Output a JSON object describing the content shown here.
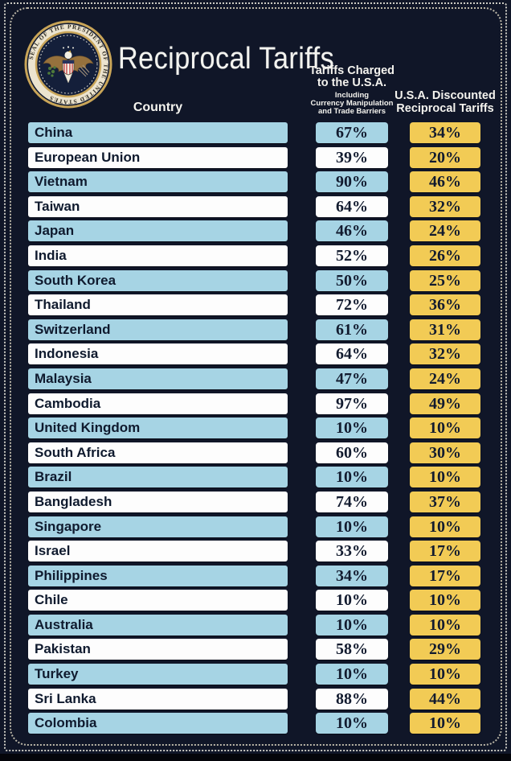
{
  "title": "Reciprocal Tariffs",
  "seal": {
    "ring_text": "SEAL OF THE PRESIDENT OF THE UNITED STATES"
  },
  "columns": {
    "country": "Country",
    "charged_line1": "Tariffs Charged",
    "charged_line2": "to the U.S.A.",
    "charged_sub1": "Including",
    "charged_sub2": "Currency Manipulation",
    "charged_sub3": "and Trade Barriers",
    "discounted_line1": "U.S.A. Discounted",
    "discounted_line2": "Reciprocal Tariffs"
  },
  "colors": {
    "background": "#101628",
    "row_blue": "#a6d4e4",
    "row_white": "#fdfdfd",
    "cell_gold": "#f2cb55",
    "text_navy": "#0f1a2e",
    "header_white": "#f4f3ee"
  },
  "chart_data": {
    "type": "table",
    "title": "Reciprocal Tariffs",
    "columns": [
      "Country",
      "Tariffs Charged to the U.S.A. Including Currency Manipulation and Trade Barriers",
      "U.S.A. Discounted Reciprocal Tariffs"
    ],
    "rows": [
      {
        "country": "China",
        "charged": "67%",
        "discounted": "34%"
      },
      {
        "country": "European Union",
        "charged": "39%",
        "discounted": "20%"
      },
      {
        "country": "Vietnam",
        "charged": "90%",
        "discounted": "46%"
      },
      {
        "country": "Taiwan",
        "charged": "64%",
        "discounted": "32%"
      },
      {
        "country": "Japan",
        "charged": "46%",
        "discounted": "24%"
      },
      {
        "country": "India",
        "charged": "52%",
        "discounted": "26%"
      },
      {
        "country": "South Korea",
        "charged": "50%",
        "discounted": "25%"
      },
      {
        "country": "Thailand",
        "charged": "72%",
        "discounted": "36%"
      },
      {
        "country": "Switzerland",
        "charged": "61%",
        "discounted": "31%"
      },
      {
        "country": "Indonesia",
        "charged": "64%",
        "discounted": "32%"
      },
      {
        "country": "Malaysia",
        "charged": "47%",
        "discounted": "24%"
      },
      {
        "country": "Cambodia",
        "charged": "97%",
        "discounted": "49%"
      },
      {
        "country": "United Kingdom",
        "charged": "10%",
        "discounted": "10%"
      },
      {
        "country": "South Africa",
        "charged": "60%",
        "discounted": "30%"
      },
      {
        "country": "Brazil",
        "charged": "10%",
        "discounted": "10%"
      },
      {
        "country": "Bangladesh",
        "charged": "74%",
        "discounted": "37%"
      },
      {
        "country": "Singapore",
        "charged": "10%",
        "discounted": "10%"
      },
      {
        "country": "Israel",
        "charged": "33%",
        "discounted": "17%"
      },
      {
        "country": "Philippines",
        "charged": "34%",
        "discounted": "17%"
      },
      {
        "country": "Chile",
        "charged": "10%",
        "discounted": "10%"
      },
      {
        "country": "Australia",
        "charged": "10%",
        "discounted": "10%"
      },
      {
        "country": "Pakistan",
        "charged": "58%",
        "discounted": "29%"
      },
      {
        "country": "Turkey",
        "charged": "10%",
        "discounted": "10%"
      },
      {
        "country": "Sri Lanka",
        "charged": "88%",
        "discounted": "44%"
      },
      {
        "country": "Colombia",
        "charged": "10%",
        "discounted": "10%"
      }
    ]
  }
}
